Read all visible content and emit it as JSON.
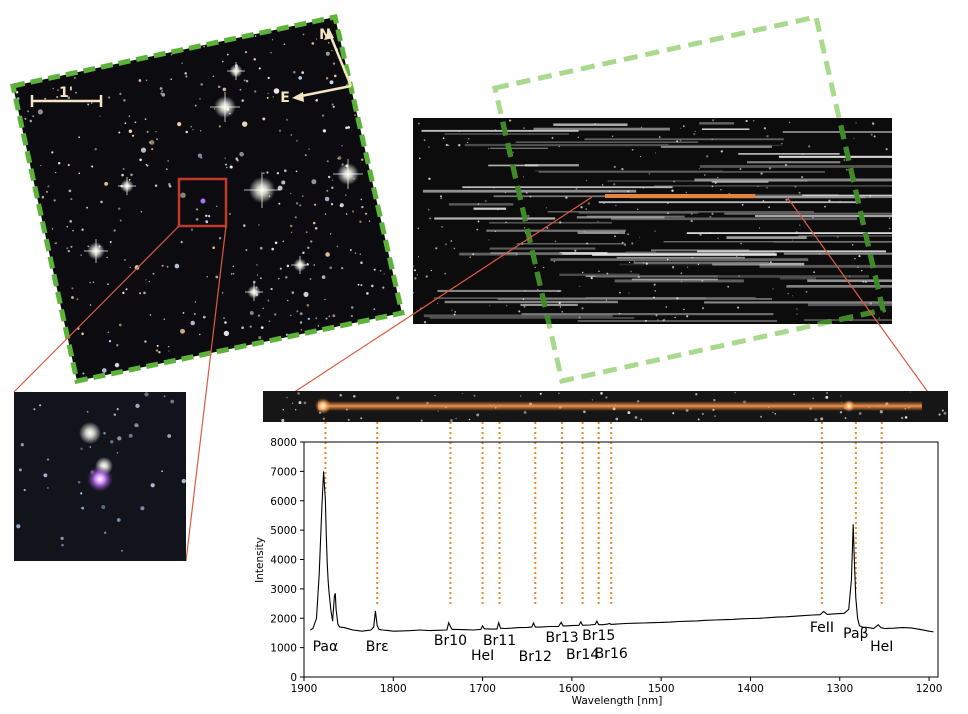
{
  "colors": {
    "dashed_box": "#5db33a",
    "dashed_box_light": "#a8d98c",
    "zoom_lines": "#e05a40",
    "cutout_box": "#c0392b",
    "line_markers": "#e98a2a",
    "spectrum": "#000000",
    "trace_orange": "#e8843a",
    "compass": "#f3e6c0",
    "scalebar": "#f3e6c0"
  },
  "sky_image": {
    "scalebar_label": "1'",
    "compass_north": "N",
    "compass_east": "E"
  },
  "chart_data": {
    "type": "line",
    "title": "",
    "xlabel": "Wavelength [nm]",
    "ylabel": "Intensity",
    "xlim": [
      1900,
      1190
    ],
    "ylim": [
      0,
      8000
    ],
    "x_ticks": [
      1900,
      1800,
      1700,
      1600,
      1500,
      1400,
      1300,
      1200
    ],
    "y_ticks": [
      0,
      1000,
      2000,
      3000,
      4000,
      5000,
      6000,
      7000,
      8000
    ],
    "grid": false,
    "series": [
      {
        "x": [
          1893,
          1890,
          1886,
          1883,
          1880,
          1878,
          1876,
          1875,
          1874,
          1873,
          1872,
          1870,
          1868,
          1866,
          1865,
          1864,
          1862,
          1860,
          1855,
          1850,
          1845,
          1840,
          1835,
          1830,
          1825,
          1822,
          1820,
          1818,
          1816,
          1812,
          1808,
          1800,
          1790,
          1780,
          1770,
          1760,
          1750,
          1740,
          1738,
          1736,
          1734,
          1730,
          1720,
          1710,
          1702,
          1700,
          1698,
          1690,
          1684,
          1682,
          1680,
          1675,
          1668,
          1660,
          1650,
          1645,
          1643,
          1641,
          1635,
          1625,
          1615,
          1612,
          1610,
          1608,
          1600,
          1592,
          1590,
          1588,
          1580,
          1574,
          1572,
          1570,
          1565,
          1560,
          1558,
          1556,
          1550,
          1540,
          1530,
          1520,
          1510,
          1500,
          1490,
          1480,
          1470,
          1460,
          1450,
          1440,
          1430,
          1420,
          1410,
          1400,
          1390,
          1380,
          1370,
          1360,
          1350,
          1340,
          1330,
          1322,
          1318,
          1314,
          1305,
          1295,
          1290,
          1287,
          1285,
          1284,
          1282,
          1280,
          1278,
          1275,
          1268,
          1262,
          1257,
          1254,
          1250,
          1240,
          1230,
          1220,
          1210,
          1200,
          1195
        ],
        "y": [
          1600,
          1650,
          2000,
          3500,
          5800,
          7000,
          6000,
          4800,
          3900,
          3300,
          2900,
          2300,
          1900,
          2750,
          2850,
          2300,
          1800,
          1700,
          1680,
          1640,
          1600,
          1580,
          1560,
          1580,
          1600,
          1700,
          2250,
          1750,
          1620,
          1600,
          1590,
          1560,
          1570,
          1580,
          1600,
          1580,
          1590,
          1600,
          1850,
          1720,
          1620,
          1620,
          1610,
          1600,
          1620,
          1740,
          1640,
          1630,
          1630,
          1850,
          1660,
          1650,
          1660,
          1680,
          1690,
          1700,
          1840,
          1700,
          1700,
          1720,
          1720,
          1860,
          1740,
          1740,
          1750,
          1760,
          1880,
          1760,
          1770,
          1790,
          1900,
          1780,
          1780,
          1800,
          1820,
          1790,
          1800,
          1820,
          1830,
          1840,
          1850,
          1860,
          1870,
          1890,
          1900,
          1910,
          1930,
          1940,
          1950,
          1960,
          1980,
          1990,
          2000,
          2020,
          2040,
          2050,
          2070,
          2090,
          2110,
          2120,
          2230,
          2130,
          2150,
          2170,
          2300,
          3300,
          5200,
          4200,
          2700,
          2000,
          1750,
          1700,
          1680,
          1650,
          1780,
          1680,
          1650,
          1660,
          1680,
          1670,
          1620,
          1560,
          1540
        ]
      }
    ],
    "annotations": [
      {
        "label": "Paα",
        "x": 1876
      },
      {
        "label": "Brε",
        "x": 1818
      },
      {
        "label": "Br10",
        "x": 1736
      },
      {
        "label": "HeI",
        "x": 1700
      },
      {
        "label": "Br11",
        "x": 1681
      },
      {
        "label": "Br12",
        "x": 1641
      },
      {
        "label": "Br13",
        "x": 1611
      },
      {
        "label": "Br14",
        "x": 1588
      },
      {
        "label": "Br15",
        "x": 1570
      },
      {
        "label": "Br16",
        "x": 1556
      },
      {
        "label": "FeII",
        "x": 1320
      },
      {
        "label": "Paβ",
        "x": 1282
      },
      {
        "label": "HeI",
        "x": 1253
      }
    ]
  }
}
